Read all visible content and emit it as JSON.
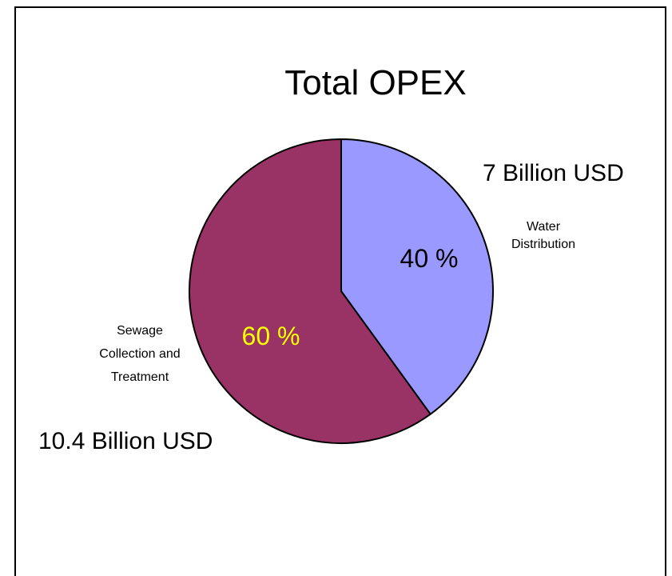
{
  "chart_data": {
    "type": "pie",
    "title": "Total OPEX",
    "slices": [
      {
        "label_lines": [
          "Water",
          "Distribution"
        ],
        "value": 40,
        "value_label": "40 %",
        "amount_label": "7 Billion USD",
        "color": "#9999ff",
        "value_label_color": "#000000"
      },
      {
        "label_lines": [
          "Sewage",
          "Collection and",
          "Treatment"
        ],
        "value": 60,
        "value_label": "60 %",
        "amount_label": "10.4 Billion USD",
        "color": "#993366",
        "value_label_color": "#ffff00"
      }
    ],
    "start_angle_deg": 0,
    "direction": "clockwise"
  }
}
